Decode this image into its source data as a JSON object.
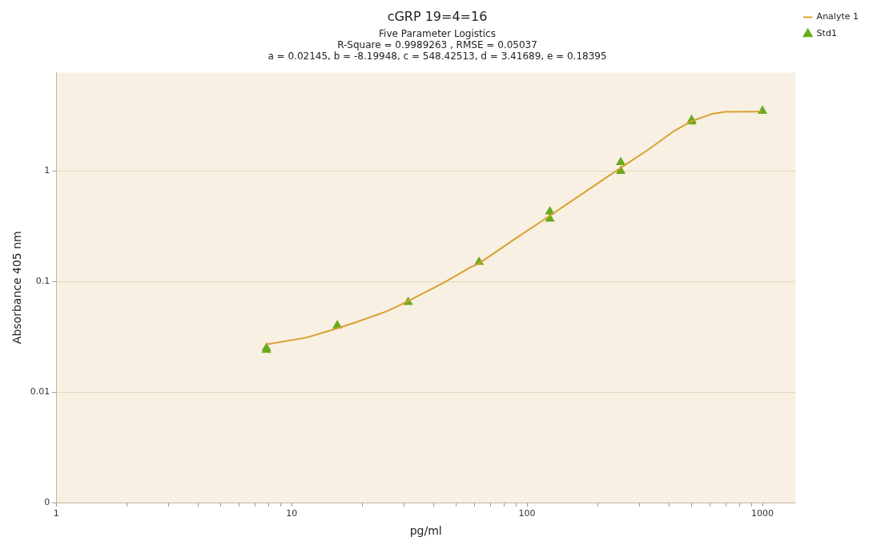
{
  "chart_data": {
    "type": "line",
    "title": "cGRP 19=4=16",
    "subtitle": "Five Parameter Logistics\nR-Square = 0.9989263 , RMSE = 0.05037\na = 0.02145, b = -8.19948, c = 548.42513, d = 3.41689, e = 0.18395",
    "xlabel": "pg/ml",
    "ylabel": "Absorbance 405 nm",
    "log": "xy",
    "grid": "y",
    "legend": "right",
    "xlim": [
      1,
      1380
    ],
    "ylim": [
      0.001,
      7.8
    ],
    "xticks": [
      1,
      {
        "value": 2,
        "label": null
      },
      {
        "value": 3,
        "label": null
      },
      {
        "value": 4,
        "label": null
      },
      {
        "value": 5,
        "label": null
      },
      {
        "value": 6,
        "label": null
      },
      {
        "value": 7,
        "label": null
      },
      {
        "value": 8,
        "label": null
      },
      {
        "value": 9,
        "label": null
      },
      10,
      {
        "value": 20,
        "label": null
      },
      {
        "value": 30,
        "label": null
      },
      {
        "value": 40,
        "label": null
      },
      {
        "value": 50,
        "label": null
      },
      {
        "value": 60,
        "label": null
      },
      {
        "value": 70,
        "label": null
      },
      {
        "value": 80,
        "label": null
      },
      {
        "value": 90,
        "label": null
      },
      100,
      {
        "value": 200,
        "label": null
      },
      {
        "value": 300,
        "label": null
      },
      {
        "value": 400,
        "label": null
      },
      {
        "value": 500,
        "label": null
      },
      {
        "value": 600,
        "label": null
      },
      {
        "value": 700,
        "label": null
      },
      {
        "value": 800,
        "label": null
      },
      {
        "value": 900,
        "label": null
      },
      1000
    ],
    "yticks": [
      {
        "value": 0.001,
        "label": "0"
      },
      0.01,
      0.1,
      1
    ],
    "series": [
      {
        "name": "Analyte 1",
        "marker": "none",
        "line_style": "solid",
        "color": "#d9a030",
        "x": [
          7.8,
          11.5,
          15.8,
          18.9,
          25.5,
          31,
          44.5,
          57,
          62.5,
          88,
          124,
          175,
          250,
          327,
          422,
          498,
          614,
          693,
          985
        ],
        "values": [
          0.027,
          0.031,
          0.038,
          0.043,
          0.054,
          0.066,
          0.098,
          0.133,
          0.146,
          0.24,
          0.39,
          0.64,
          1.07,
          1.56,
          2.31,
          2.82,
          3.3,
          3.43,
          3.45
        ]
      },
      {
        "name": "Std1",
        "type": "scatter",
        "marker": "triangle",
        "color": "#6aaa1e",
        "x": [
          7.8125,
          7.8125,
          15.625,
          31.25,
          62.5,
          125,
          125,
          250,
          250,
          500,
          500,
          1000
        ],
        "values": [
          0.024,
          0.025,
          0.04,
          0.065,
          0.15,
          0.43,
          0.37,
          1.2,
          1.0,
          2.9,
          2.8,
          3.5
        ]
      }
    ]
  }
}
